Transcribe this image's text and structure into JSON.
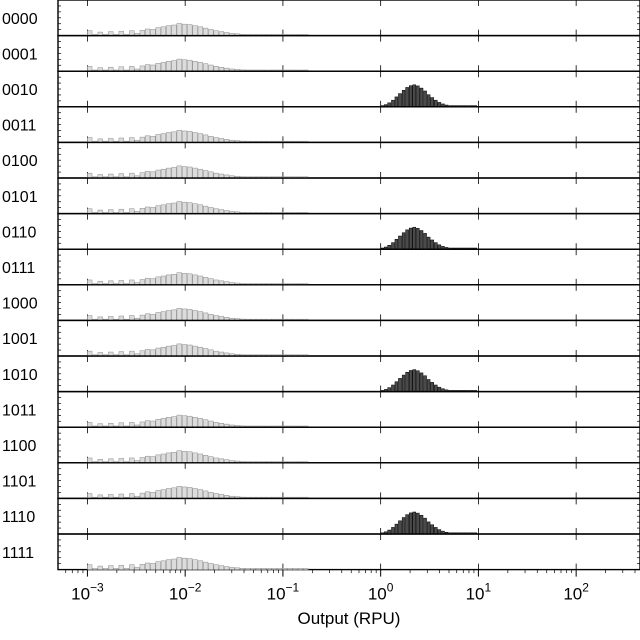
{
  "chart_data": {
    "type": "bar",
    "title": "",
    "xlabel": "Output (RPU)",
    "ylabel": "",
    "xscale": "log",
    "xlim": [
      0.0005,
      450
    ],
    "xtick_labels": [
      {
        "base": "10",
        "exp": "−3",
        "value": 0.001
      },
      {
        "base": "10",
        "exp": "−2",
        "value": 0.01
      },
      {
        "base": "10",
        "exp": "−1",
        "value": 0.1
      },
      {
        "base": "10",
        "exp": "0",
        "value": 1
      },
      {
        "base": "10",
        "exp": "1",
        "value": 10
      },
      {
        "base": "10",
        "exp": "2",
        "value": 100
      }
    ],
    "panels": [
      {
        "label": "0000",
        "state": "off"
      },
      {
        "label": "0001",
        "state": "off"
      },
      {
        "label": "0010",
        "state": "on"
      },
      {
        "label": "0011",
        "state": "off"
      },
      {
        "label": "0100",
        "state": "off"
      },
      {
        "label": "0101",
        "state": "off"
      },
      {
        "label": "0110",
        "state": "on"
      },
      {
        "label": "0111",
        "state": "off"
      },
      {
        "label": "1000",
        "state": "off"
      },
      {
        "label": "1001",
        "state": "off"
      },
      {
        "label": "1010",
        "state": "on"
      },
      {
        "label": "1011",
        "state": "off"
      },
      {
        "label": "1100",
        "state": "off"
      },
      {
        "label": "1101",
        "state": "off"
      },
      {
        "label": "1110",
        "state": "on"
      },
      {
        "label": "1111",
        "state": "off"
      }
    ],
    "distributions": {
      "off": {
        "description": "Low-output (OFF) population histogram",
        "bins": [
          [
            0.001,
            0.22
          ],
          [
            0.00113,
            0.05
          ],
          [
            0.00128,
            0.16
          ],
          [
            0.00145,
            0.05
          ],
          [
            0.00164,
            0.18
          ],
          [
            0.00186,
            0.05
          ],
          [
            0.0021,
            0.2
          ],
          [
            0.00238,
            0.05
          ],
          [
            0.00269,
            0.22
          ],
          [
            0.00305,
            0.1
          ],
          [
            0.00345,
            0.24
          ],
          [
            0.00391,
            0.3
          ],
          [
            0.00442,
            0.28
          ],
          [
            0.00501,
            0.36
          ],
          [
            0.00567,
            0.4
          ],
          [
            0.00642,
            0.45
          ],
          [
            0.00727,
            0.48
          ],
          [
            0.00823,
            0.55
          ],
          [
            0.00932,
            0.52
          ],
          [
            0.01055,
            0.5
          ],
          [
            0.01195,
            0.45
          ],
          [
            0.01353,
            0.4
          ],
          [
            0.01532,
            0.34
          ],
          [
            0.01735,
            0.28
          ],
          [
            0.01964,
            0.22
          ],
          [
            0.02224,
            0.18
          ],
          [
            0.02518,
            0.14
          ],
          [
            0.02851,
            0.1
          ],
          [
            0.03228,
            0.08
          ],
          [
            0.03655,
            0.06
          ],
          [
            0.04139,
            0.04
          ],
          [
            0.04686,
            0.03
          ],
          [
            0.05306,
            0.025
          ],
          [
            0.06008,
            0.02
          ],
          [
            0.06803,
            0.015
          ],
          [
            0.07703,
            0.01
          ],
          [
            0.08722,
            0.008
          ],
          [
            0.09876,
            0.006
          ],
          [
            0.1118,
            0.004
          ],
          [
            0.1266,
            0.003
          ],
          [
            0.1434,
            0.003
          ],
          [
            0.1623,
            0.002
          ]
        ]
      },
      "on": {
        "description": "High-output (ON) population histogram",
        "bins": [
          [
            1.0,
            0.05
          ],
          [
            1.09,
            0.1
          ],
          [
            1.18,
            0.18
          ],
          [
            1.29,
            0.3
          ],
          [
            1.4,
            0.45
          ],
          [
            1.52,
            0.6
          ],
          [
            1.66,
            0.75
          ],
          [
            1.8,
            0.88
          ],
          [
            1.96,
            0.96
          ],
          [
            2.13,
            1.0
          ],
          [
            2.32,
            0.95
          ],
          [
            2.52,
            0.85
          ],
          [
            2.75,
            0.72
          ],
          [
            2.99,
            0.55
          ],
          [
            3.25,
            0.42
          ],
          [
            3.54,
            0.3
          ],
          [
            3.85,
            0.2
          ],
          [
            4.19,
            0.13
          ],
          [
            4.56,
            0.08
          ],
          [
            4.96,
            0.05
          ],
          [
            5.4,
            0.04
          ],
          [
            5.87,
            0.03
          ],
          [
            6.39,
            0.02
          ],
          [
            6.95,
            0.01
          ],
          [
            7.56,
            0.01
          ],
          [
            8.22,
            0.01
          ],
          [
            8.95,
            0.005
          ]
        ]
      }
    },
    "colors": {
      "off_fill": "#dcdcdc",
      "off_stroke": "#8c8c8c",
      "on_fill": "#4a4a4a",
      "on_stroke": "#000000",
      "axis": "#000000"
    }
  }
}
